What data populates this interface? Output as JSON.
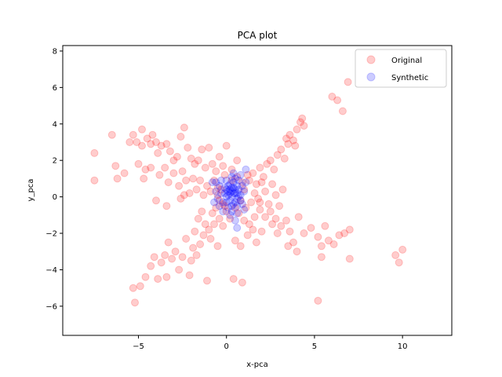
{
  "chart_data": {
    "type": "scatter",
    "title": "PCA plot",
    "xlabel": "x-pca",
    "ylabel": "y_pca",
    "xlim": [
      -9.3,
      12.8
    ],
    "ylim": [
      -7.6,
      8.3
    ],
    "xticks": [
      -5,
      0,
      5,
      10
    ],
    "xtick_labels": [
      "−5",
      "0",
      "5",
      "10"
    ],
    "yticks": [
      -6,
      -4,
      -2,
      0,
      2,
      4,
      6,
      8
    ],
    "ytick_labels": [
      "−6",
      "−4",
      "−2",
      "0",
      "2",
      "4",
      "6",
      "8"
    ],
    "grid": false,
    "legend_position": "top-right",
    "series": [
      {
        "name": "Original",
        "color": "#ff0000",
        "alpha": 0.2,
        "points": [
          [
            -7.5,
            2.4
          ],
          [
            -7.5,
            0.9
          ],
          [
            -6.5,
            3.4
          ],
          [
            -6.3,
            1.7
          ],
          [
            -6.2,
            1.0
          ],
          [
            -5.8,
            1.3
          ],
          [
            -5.5,
            3.0
          ],
          [
            -5.3,
            3.4
          ],
          [
            -5.1,
            3.0
          ],
          [
            -5.0,
            1.8
          ],
          [
            -4.8,
            2.8
          ],
          [
            -4.8,
            3.7
          ],
          [
            -4.6,
            1.5
          ],
          [
            -4.5,
            3.2
          ],
          [
            -4.3,
            2.9
          ],
          [
            -4.2,
            3.4
          ],
          [
            -4.0,
            3.0
          ],
          [
            -3.9,
            2.4
          ],
          [
            -3.7,
            2.8
          ],
          [
            -3.5,
            1.6
          ],
          [
            -3.4,
            2.9
          ],
          [
            -3.2,
            2.5
          ],
          [
            -3.0,
            2.0
          ],
          [
            -2.8,
            2.2
          ],
          [
            -2.6,
            3.3
          ],
          [
            -2.4,
            3.8
          ],
          [
            -2.2,
            2.7
          ],
          [
            -2.0,
            2.1
          ],
          [
            -1.8,
            1.8
          ],
          [
            -1.6,
            2.0
          ],
          [
            -1.4,
            2.6
          ],
          [
            -1.2,
            1.6
          ],
          [
            -1.0,
            2.7
          ],
          [
            -0.8,
            1.8
          ],
          [
            -0.6,
            1.4
          ],
          [
            -0.4,
            2.2
          ],
          [
            -0.2,
            1.7
          ],
          [
            0.0,
            2.8
          ],
          [
            0.3,
            1.5
          ],
          [
            0.6,
            2.0
          ],
          [
            -4.7,
            1.0
          ],
          [
            -4.3,
            1.6
          ],
          [
            -3.8,
            1.2
          ],
          [
            -3.3,
            0.8
          ],
          [
            -3.0,
            1.3
          ],
          [
            -2.7,
            0.6
          ],
          [
            -2.5,
            1.4
          ],
          [
            -2.3,
            0.9
          ],
          [
            -2.1,
            0.2
          ],
          [
            -1.9,
            1.0
          ],
          [
            -1.7,
            0.4
          ],
          [
            -1.5,
            0.9
          ],
          [
            -1.3,
            0.1
          ],
          [
            -1.1,
            0.6
          ],
          [
            -0.9,
            0.3
          ],
          [
            -0.7,
            0.9
          ],
          [
            -0.5,
            0.5
          ],
          [
            -0.4,
            -0.2
          ],
          [
            -0.3,
            0.4
          ],
          [
            -0.1,
            -0.5
          ],
          [
            -4.0,
            -0.2
          ],
          [
            -3.4,
            -0.5
          ],
          [
            -2.6,
            -0.1
          ],
          [
            -2.4,
            0.1
          ],
          [
            5.2,
            -5.7
          ],
          [
            -5.2,
            -5.8
          ],
          [
            -5.3,
            -5.0
          ],
          [
            -4.9,
            -4.9
          ],
          [
            -4.6,
            -4.4
          ],
          [
            -4.3,
            -3.8
          ],
          [
            -4.1,
            -3.3
          ],
          [
            -3.9,
            -4.5
          ],
          [
            -3.7,
            -3.6
          ],
          [
            -3.5,
            -3.2
          ],
          [
            -3.4,
            -4.4
          ],
          [
            -3.3,
            -2.5
          ],
          [
            -3.1,
            -3.4
          ],
          [
            -2.9,
            -3.0
          ],
          [
            -2.7,
            -4.0
          ],
          [
            -2.5,
            -3.3
          ],
          [
            -2.3,
            -2.3
          ],
          [
            -2.1,
            -4.3
          ],
          [
            -2.0,
            -3.5
          ],
          [
            -1.9,
            -2.8
          ],
          [
            -1.7,
            -3.2
          ],
          [
            -1.5,
            -2.6
          ],
          [
            -1.3,
            -2.1
          ],
          [
            -1.1,
            -4.6
          ],
          [
            -1.0,
            -1.8
          ],
          [
            -0.9,
            -2.3
          ],
          [
            -0.7,
            -1.5
          ],
          [
            -0.5,
            -2.7
          ],
          [
            -0.4,
            -1.2
          ],
          [
            -0.2,
            -1.6
          ],
          [
            -1.8,
            -1.9
          ],
          [
            -1.6,
            -1.2
          ],
          [
            -1.4,
            -0.8
          ],
          [
            -1.2,
            -1.5
          ],
          [
            -0.8,
            -0.9
          ],
          [
            -0.6,
            -0.6
          ],
          [
            0.4,
            -4.5
          ],
          [
            0.9,
            -4.7
          ],
          [
            0.5,
            -2.4
          ],
          [
            0.8,
            -2.7
          ],
          [
            1.2,
            -2.1
          ],
          [
            1.5,
            -1.8
          ],
          [
            1.7,
            -2.5
          ],
          [
            1.3,
            -1.5
          ],
          [
            1.0,
            -1.3
          ],
          [
            0.7,
            -0.9
          ],
          [
            1.9,
            -0.7
          ],
          [
            2.2,
            -1.1
          ],
          [
            2.5,
            -0.8
          ],
          [
            2.8,
            -1.2
          ],
          [
            3.1,
            -1.6
          ],
          [
            3.4,
            -1.3
          ],
          [
            3.6,
            -1.9
          ],
          [
            3.8,
            -2.5
          ],
          [
            4.1,
            -1.1
          ],
          [
            4.4,
            -2.0
          ],
          [
            4.8,
            -1.7
          ],
          [
            5.2,
            -2.2
          ],
          [
            5.4,
            -2.7
          ],
          [
            5.6,
            -1.6
          ],
          [
            5.8,
            -2.4
          ],
          [
            6.1,
            -2.6
          ],
          [
            6.4,
            -2.1
          ],
          [
            6.7,
            -2.0
          ],
          [
            7.0,
            -1.8
          ],
          [
            7.0,
            -3.4
          ],
          [
            5.4,
            -3.3
          ],
          [
            4.0,
            -3.0
          ],
          [
            3.5,
            -2.7
          ],
          [
            2.9,
            -2.0
          ],
          [
            2.6,
            -1.5
          ],
          [
            2.0,
            -1.9
          ],
          [
            1.6,
            -1.1
          ],
          [
            1.1,
            -0.6
          ],
          [
            1.4,
            -0.3
          ],
          [
            1.8,
            -0.1
          ],
          [
            9.6,
            -3.2
          ],
          [
            9.8,
            -3.6
          ],
          [
            10.0,
            -2.9
          ],
          [
            1.0,
            0.4
          ],
          [
            1.3,
            0.9
          ],
          [
            1.5,
            1.3
          ],
          [
            1.7,
            0.7
          ],
          [
            1.9,
            1.6
          ],
          [
            2.1,
            1.1
          ],
          [
            2.3,
            1.8
          ],
          [
            2.5,
            2.0
          ],
          [
            2.7,
            1.5
          ],
          [
            2.9,
            2.3
          ],
          [
            3.1,
            2.6
          ],
          [
            3.3,
            2.1
          ],
          [
            3.5,
            2.9
          ],
          [
            3.6,
            3.4
          ],
          [
            3.8,
            3.1
          ],
          [
            4.0,
            3.7
          ],
          [
            4.2,
            4.1
          ],
          [
            4.4,
            3.9
          ],
          [
            3.9,
            2.8
          ],
          [
            3.4,
            3.2
          ],
          [
            2.6,
            0.7
          ],
          [
            2.2,
            0.3
          ],
          [
            1.9,
            -0.3
          ],
          [
            2.4,
            -0.4
          ],
          [
            2.8,
            0.1
          ],
          [
            3.0,
            -0.5
          ],
          [
            3.2,
            0.4
          ],
          [
            2.0,
            0.8
          ],
          [
            1.6,
            0.2
          ],
          [
            1.2,
            1.2
          ],
          [
            4.3,
            4.3
          ],
          [
            6.0,
            5.5
          ],
          [
            6.3,
            5.3
          ],
          [
            6.6,
            4.7
          ],
          [
            6.9,
            6.3
          ],
          [
            0.0,
            -0.8
          ],
          [
            0.2,
            -1.2
          ],
          [
            -0.2,
            -0.4
          ],
          [
            0.5,
            -0.6
          ],
          [
            0.8,
            -0.2
          ],
          [
            -0.5,
            0.1
          ],
          [
            0.3,
            0.9
          ],
          [
            0.6,
            1.1
          ],
          [
            -0.1,
            1.2
          ],
          [
            0.9,
            0.8
          ]
        ]
      },
      {
        "name": "Synthetic",
        "color": "#0000ff",
        "alpha": 0.2,
        "points": [
          [
            0.0,
            0.0
          ],
          [
            0.1,
            0.3
          ],
          [
            0.2,
            -0.2
          ],
          [
            0.3,
            0.5
          ],
          [
            0.4,
            -0.4
          ],
          [
            0.5,
            0.2
          ],
          [
            0.6,
            -0.1
          ],
          [
            0.7,
            0.4
          ],
          [
            0.2,
            0.7
          ],
          [
            0.4,
            0.8
          ],
          [
            0.1,
            -0.6
          ],
          [
            0.3,
            -0.8
          ],
          [
            0.6,
            -0.5
          ],
          [
            0.8,
            0.1
          ],
          [
            0.9,
            0.6
          ],
          [
            -0.1,
            0.5
          ],
          [
            -0.2,
            -0.3
          ],
          [
            -0.3,
            0.2
          ],
          [
            -0.4,
            0.6
          ],
          [
            -0.5,
            -0.1
          ],
          [
            0.5,
            1.0
          ],
          [
            0.3,
            1.1
          ],
          [
            0.0,
            0.9
          ],
          [
            0.7,
            0.9
          ],
          [
            0.9,
            -0.4
          ],
          [
            1.0,
            0.3
          ],
          [
            1.1,
            0.8
          ],
          [
            1.0,
            -0.7
          ],
          [
            0.6,
            -0.9
          ],
          [
            0.2,
            -1.0
          ],
          [
            -0.2,
            -0.8
          ],
          [
            -0.4,
            -0.5
          ],
          [
            -0.6,
            0.3
          ],
          [
            -0.6,
            0.8
          ],
          [
            -0.3,
            0.9
          ],
          [
            0.8,
            1.2
          ],
          [
            0.4,
            1.3
          ],
          [
            1.1,
            1.5
          ],
          [
            -0.8,
            0.8
          ],
          [
            -0.7,
            -0.3
          ],
          [
            0.6,
            -1.7
          ],
          [
            0.5,
            -1.3
          ],
          [
            0.1,
            0.1
          ],
          [
            0.3,
            0.0
          ],
          [
            0.4,
            0.2
          ],
          [
            0.2,
            0.4
          ],
          [
            0.5,
            -0.3
          ],
          [
            0.3,
            -0.5
          ],
          [
            0.0,
            -0.3
          ],
          [
            0.1,
            0.6
          ],
          [
            0.6,
            0.6
          ],
          [
            0.7,
            0.0
          ],
          [
            0.8,
            -0.2
          ],
          [
            0.4,
            0.5
          ],
          [
            0.2,
            0.2
          ],
          [
            -0.1,
            0.2
          ],
          [
            0.0,
            0.4
          ],
          [
            0.5,
            0.4
          ],
          [
            0.6,
            0.2
          ],
          [
            0.3,
            0.3
          ]
        ]
      }
    ]
  }
}
